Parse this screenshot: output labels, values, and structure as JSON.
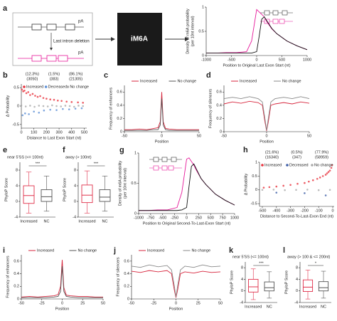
{
  "schematic": {
    "pA": "pA",
    "deletion": "Last intron deletion",
    "model": "iM6A"
  },
  "chart_data": [
    {
      "type": "line",
      "label": "a",
      "ylabel": [
        "Density of m6A probability",
        "(per 10nt interval)"
      ],
      "xlabel": "Position to Original Last Exon Start (nt)",
      "xlim": [
        -1000,
        1000
      ],
      "xticks": [
        -1000,
        -500,
        0,
        500,
        1000
      ],
      "ylim": [
        0,
        1
      ],
      "yticks": [
        0,
        0.5,
        1
      ],
      "legend": false,
      "series": [
        {
          "color": "#e6199a",
          "x": [
            -1000,
            -800,
            -600,
            -400,
            -200,
            -100,
            0,
            50,
            100,
            150,
            200,
            300,
            400,
            600,
            800,
            1000
          ],
          "values": [
            0.05,
            0.05,
            0.06,
            0.06,
            0.08,
            0.3,
            0.95,
            0.9,
            0.85,
            0.8,
            0.7,
            0.55,
            0.45,
            0.3,
            0.2,
            0.12
          ]
        },
        {
          "color": "#111111",
          "x": [
            -1000,
            -800,
            -600,
            -400,
            -200,
            -100,
            0,
            50,
            100,
            150,
            200,
            300,
            400,
            600,
            800,
            1000
          ],
          "values": [
            0.05,
            0.05,
            0.05,
            0.05,
            0.05,
            0.05,
            0.08,
            0.4,
            0.75,
            0.8,
            0.72,
            0.56,
            0.45,
            0.3,
            0.2,
            0.12
          ]
        }
      ]
    },
    {
      "type": "scatter",
      "label": "b",
      "ylabel": "Δ Probability",
      "xlabel": "Distance to Last Exon Start (nt)",
      "xlim": [
        0,
        520
      ],
      "xticks": [
        0,
        100,
        200,
        300,
        400,
        500
      ],
      "ylim": [
        -0.6,
        0.6
      ],
      "yticks": [
        -0.5,
        0,
        0.5
      ],
      "legend": true,
      "group_labels": [
        [
          "(12.3%)",
          "(3050)"
        ],
        [
          "(1.5%)",
          "(383)"
        ],
        [
          "(86.1%)",
          "(21305)"
        ]
      ],
      "series": [
        {
          "name": "Increased",
          "color": "#e8343f",
          "x": [
            5,
            15,
            25,
            40,
            55,
            70,
            90,
            110,
            130,
            150,
            175,
            200,
            230,
            260,
            290,
            320,
            360,
            400,
            450,
            490
          ],
          "values": [
            0.45,
            0.4,
            0.42,
            0.35,
            0.38,
            0.3,
            0.33,
            0.28,
            0.25,
            0.27,
            0.22,
            0.2,
            0.18,
            0.17,
            0.15,
            0.14,
            0.12,
            0.11,
            0.1,
            0.09
          ]
        },
        {
          "name": "Decreased",
          "color": "#5b8fd6",
          "x": [
            10,
            30,
            60,
            100,
            140,
            180,
            230,
            280,
            330,
            380,
            430,
            480
          ],
          "values": [
            -0.25,
            -0.2,
            -0.22,
            -0.15,
            -0.18,
            -0.12,
            -0.1,
            -0.11,
            -0.08,
            -0.09,
            -0.07,
            -0.06
          ]
        },
        {
          "name": "No change",
          "color": "#aaaaaa",
          "x": [
            0,
            35,
            70,
            105,
            140,
            175,
            210,
            245,
            280,
            315,
            350,
            385,
            420,
            455,
            490
          ],
          "values": [
            0.02,
            -0.01,
            0.01,
            -0.02,
            0.01,
            0,
            -0.01,
            0.02,
            0,
            -0.01,
            0.01,
            0,
            -0.02,
            0.01,
            0
          ]
        }
      ]
    },
    {
      "type": "line",
      "label": "c",
      "ylabel": "Frequency of enhancers",
      "xlabel": "Position",
      "xlim": [
        -50,
        50
      ],
      "xticks": [
        -50,
        0,
        50
      ],
      "ylim": [
        0,
        0.7
      ],
      "yticks": [
        0,
        0.2,
        0.4,
        0.6
      ],
      "legend": true,
      "series": [
        {
          "name": "Increased",
          "color": "#d7263d",
          "x": [
            -50,
            -40,
            -30,
            -20,
            -10,
            -5,
            -2,
            0,
            2,
            5,
            10,
            20,
            30,
            40,
            50
          ],
          "values": [
            0.03,
            0.03,
            0.04,
            0.03,
            0.05,
            0.06,
            0.15,
            0.6,
            0.15,
            0.05,
            0.04,
            0.03,
            0.03,
            0.03,
            0.03
          ]
        },
        {
          "name": "No change",
          "color": "#555555",
          "x": [
            -50,
            -40,
            -30,
            -20,
            -10,
            -5,
            -2,
            0,
            2,
            5,
            10,
            20,
            30,
            40,
            50
          ],
          "values": [
            0.02,
            0.02,
            0.02,
            0.02,
            0.03,
            0.03,
            0.1,
            0.5,
            0.1,
            0.03,
            0.02,
            0.02,
            0.02,
            0.02,
            0.02
          ]
        }
      ]
    },
    {
      "type": "line",
      "label": "d",
      "ylabel": "Frequency of silencers",
      "xlabel": "Position",
      "xlim": [
        -50,
        50
      ],
      "xticks": [
        -50,
        0,
        50
      ],
      "ylim": [
        0,
        0.7
      ],
      "yticks": [
        0,
        0.2,
        0.4,
        0.6
      ],
      "legend": true,
      "series": [
        {
          "name": "Increased",
          "color": "#d7263d",
          "x": [
            -50,
            -40,
            -30,
            -20,
            -10,
            -5,
            -2,
            0,
            2,
            5,
            10,
            20,
            30,
            40,
            50
          ],
          "values": [
            0.42,
            0.45,
            0.43,
            0.46,
            0.44,
            0.4,
            0.15,
            0.01,
            0.15,
            0.4,
            0.42,
            0.44,
            0.42,
            0.45,
            0.43
          ]
        },
        {
          "name": "No change",
          "color": "#888888",
          "x": [
            -50,
            -40,
            -30,
            -20,
            -10,
            -5,
            -2,
            0,
            2,
            5,
            10,
            20,
            30,
            40,
            50
          ],
          "values": [
            0.5,
            0.52,
            0.5,
            0.53,
            0.5,
            0.45,
            0.2,
            0.02,
            0.2,
            0.45,
            0.5,
            0.52,
            0.5,
            0.53,
            0.5
          ]
        }
      ]
    },
    {
      "type": "box",
      "label": "e",
      "title": "near 5'SS (<= 100nt)",
      "ylabel": "PhyloP Score",
      "categories": [
        "Increased",
        "NC"
      ],
      "significance": "***",
      "ylim": [
        -4,
        10
      ],
      "yticks": [
        -4,
        0,
        4,
        8
      ],
      "boxes": [
        {
          "color": "#e0304a",
          "whisker_low": -3,
          "q1": -0.5,
          "median": 1.5,
          "q3": 4,
          "whisker_high": 7.5
        },
        {
          "color": "#555555",
          "whisker_low": -2.5,
          "q1": 0,
          "median": 1.2,
          "q3": 3,
          "whisker_high": 6.5
        }
      ]
    },
    {
      "type": "box",
      "label": "f",
      "title": "away (> 100nt)",
      "ylabel": "PhyloP Score",
      "categories": [
        "Increased",
        "NC"
      ],
      "significance": "***",
      "ylim": [
        -4,
        10
      ],
      "yticks": [
        -4,
        0,
        4,
        8
      ],
      "boxes": [
        {
          "color": "#e0304a",
          "whisker_low": -3,
          "q1": -0.3,
          "median": 1.6,
          "q3": 4.2,
          "whisker_high": 7.8
        },
        {
          "color": "#555555",
          "whisker_low": -2.5,
          "q1": 0,
          "median": 1.1,
          "q3": 3,
          "whisker_high": 6.5
        }
      ]
    },
    {
      "type": "line",
      "label": "g",
      "ylabel": [
        "Density of m6A probability",
        "(per 10nt interval)"
      ],
      "xlabel": "Position to Original Second-To-Last-Exon Start (nt)",
      "xlim": [
        -1000,
        1000
      ],
      "xticks": [
        -1000,
        -750,
        -500,
        -250,
        0,
        250,
        500,
        750,
        1000
      ],
      "ylim": [
        0,
        1
      ],
      "yticks": [
        0,
        0.5,
        1
      ],
      "legend": false,
      "series": [
        {
          "color": "#e6199a",
          "x": [
            -1000,
            -800,
            -600,
            -400,
            -200,
            -100,
            0,
            50,
            100,
            150,
            200,
            300,
            400,
            600,
            800,
            1000
          ],
          "values": [
            0.05,
            0.05,
            0.06,
            0.06,
            0.1,
            0.35,
            0.9,
            0.92,
            0.86,
            0.8,
            0.72,
            0.58,
            0.48,
            0.32,
            0.22,
            0.14
          ]
        },
        {
          "color": "#111111",
          "x": [
            -1000,
            -800,
            -600,
            -400,
            -200,
            -100,
            0,
            50,
            100,
            150,
            200,
            300,
            400,
            600,
            800,
            1000
          ],
          "values": [
            0.05,
            0.05,
            0.05,
            0.05,
            0.05,
            0.06,
            0.1,
            0.45,
            0.78,
            0.82,
            0.74,
            0.58,
            0.48,
            0.32,
            0.22,
            0.14
          ]
        }
      ]
    },
    {
      "type": "scatter",
      "label": "h",
      "ylabel": "Δ Probability",
      "xlabel": "Distance to Second-To-Last-Exon End (nt)",
      "xlim": [
        -520,
        10
      ],
      "xticks": [
        -500,
        -400,
        -300,
        -200,
        -100,
        0
      ],
      "ylim": [
        -0.6,
        1
      ],
      "yticks": [
        -0.5,
        0,
        0.5,
        1
      ],
      "legend": true,
      "group_labels": [
        [
          "(21.6%)",
          "(16340)"
        ],
        [
          "(0.5%)",
          "(347)"
        ],
        [
          "(77.9%)",
          "(58959)"
        ]
      ],
      "series": [
        {
          "name": "Increased",
          "color": "#e8343f",
          "x": [
            -490,
            -450,
            -400,
            -350,
            -300,
            -250,
            -200,
            -170,
            -140,
            -110,
            -90,
            -70,
            -50,
            -40,
            -30,
            -20,
            -10,
            -5
          ],
          "values": [
            0.08,
            0.1,
            0.12,
            0.15,
            0.18,
            0.22,
            0.25,
            0.3,
            0.35,
            0.4,
            0.45,
            0.5,
            0.55,
            0.6,
            0.65,
            0.7,
            0.8,
            0.9
          ]
        },
        {
          "name": "Decreased",
          "color": "#3f5fa8",
          "x": [
            -400,
            -200,
            -50
          ],
          "values": [
            -0.1,
            -0.12,
            -0.2
          ]
        },
        {
          "name": "No change",
          "color": "#aaaaaa",
          "x": [
            -500,
            -420,
            -340,
            -260,
            -180,
            -100,
            -20
          ],
          "values": [
            0,
            0.01,
            -0.01,
            0,
            0.01,
            -0.01,
            0
          ]
        }
      ]
    },
    {
      "type": "line",
      "label": "i",
      "ylabel": "Frequency of enhancers",
      "xlabel": "Position",
      "xlim": [
        -50,
        50
      ],
      "xticks": [
        -50,
        -25,
        0,
        25,
        50
      ],
      "ylim": [
        0,
        0.7
      ],
      "yticks": [
        0,
        0.2,
        0.4,
        0.6
      ],
      "legend": true,
      "series": [
        {
          "name": "Increased",
          "color": "#d7263d",
          "x": [
            -50,
            -40,
            -30,
            -20,
            -10,
            -5,
            -2,
            0,
            2,
            5,
            10,
            20,
            30,
            40,
            50
          ],
          "values": [
            0.03,
            0.04,
            0.03,
            0.04,
            0.05,
            0.07,
            0.2,
            0.62,
            0.18,
            0.06,
            0.05,
            0.04,
            0.04,
            0.03,
            0.03
          ]
        },
        {
          "name": "No change",
          "color": "#555555",
          "x": [
            -50,
            -40,
            -30,
            -20,
            -10,
            -5,
            -2,
            0,
            2,
            5,
            10,
            20,
            30,
            40,
            50
          ],
          "values": [
            0.02,
            0.02,
            0.02,
            0.02,
            0.03,
            0.04,
            0.12,
            0.52,
            0.12,
            0.04,
            0.03,
            0.02,
            0.02,
            0.02,
            0.02
          ]
        }
      ]
    },
    {
      "type": "line",
      "label": "j",
      "ylabel": "Frequency of silencers",
      "xlabel": "Position",
      "xlim": [
        -50,
        50
      ],
      "xticks": [
        -50,
        -25,
        0,
        25,
        50
      ],
      "ylim": [
        0,
        0.7
      ],
      "yticks": [
        0,
        0.2,
        0.4,
        0.6
      ],
      "legend": true,
      "series": [
        {
          "name": "Increased",
          "color": "#d7263d",
          "x": [
            -50,
            -40,
            -30,
            -20,
            -10,
            -5,
            -2,
            0,
            2,
            5,
            10,
            20,
            30,
            40,
            50
          ],
          "values": [
            0.44,
            0.42,
            0.45,
            0.43,
            0.45,
            0.4,
            0.15,
            0.02,
            0.15,
            0.4,
            0.43,
            0.41,
            0.44,
            0.42,
            0.43
          ]
        },
        {
          "name": "No change",
          "color": "#888888",
          "x": [
            -50,
            -40,
            -30,
            -20,
            -10,
            -5,
            -2,
            0,
            2,
            5,
            10,
            20,
            30,
            40,
            50
          ],
          "values": [
            0.52,
            0.5,
            0.54,
            0.51,
            0.53,
            0.46,
            0.22,
            0.03,
            0.22,
            0.46,
            0.52,
            0.5,
            0.54,
            0.51,
            0.52
          ]
        }
      ]
    },
    {
      "type": "box",
      "label": "k",
      "title": "near 5'SS (<= 100nt)",
      "ylabel": "PhyloP Score",
      "categories": [
        "Increased",
        "NC"
      ],
      "significance": "***",
      "ylim": [
        -4,
        10
      ],
      "yticks": [
        -4,
        0,
        4,
        8
      ],
      "boxes": [
        {
          "color": "#e0304a",
          "whisker_low": -3,
          "q1": -0.4,
          "median": 1.4,
          "q3": 4,
          "whisker_high": 7.6
        },
        {
          "color": "#555555",
          "whisker_low": -2.5,
          "q1": 0,
          "median": 1.1,
          "q3": 3.1,
          "whisker_high": 6.6
        }
      ]
    },
    {
      "type": "box",
      "label": "l",
      "title": "away (> 100 & <= 200nt)",
      "ylabel": "PhyloP Score",
      "categories": [
        "Increased",
        "NC"
      ],
      "significance": "*",
      "ylim": [
        -4,
        10
      ],
      "yticks": [
        -4,
        0,
        4,
        8
      ],
      "boxes": [
        {
          "color": "#e0304a",
          "whisker_low": -2.8,
          "q1": -0.2,
          "median": 1.3,
          "q3": 3.8,
          "whisker_high": 7.2
        },
        {
          "color": "#555555",
          "whisker_low": -2.5,
          "q1": 0,
          "median": 1.1,
          "q3": 3.2,
          "whisker_high": 6.8
        }
      ]
    }
  ]
}
